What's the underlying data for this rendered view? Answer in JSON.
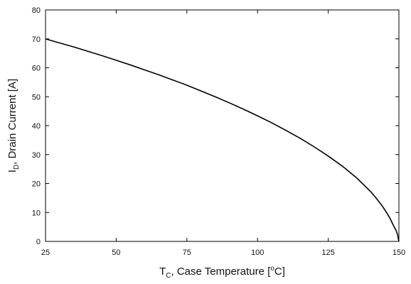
{
  "chart_data": {
    "type": "line",
    "xlabel": {
      "main": "T",
      "sub": "C",
      "rest_before_sup": ", Case Temperature [",
      "sup": "o",
      "rest_after_sup": "C]"
    },
    "ylabel": {
      "main": "I",
      "sub": "D",
      "rest": ", Drain Current [A]"
    },
    "xlim": [
      25,
      150
    ],
    "ylim": [
      0,
      80
    ],
    "xticks": [
      25,
      50,
      75,
      100,
      125,
      150
    ],
    "yticks": [
      0,
      10,
      20,
      30,
      40,
      50,
      60,
      70,
      80
    ],
    "grid": false,
    "series": [
      {
        "color": "#000000",
        "x": [
          25,
          30,
          35,
          40,
          45,
          50,
          55,
          60,
          65,
          70,
          75,
          80,
          85,
          90,
          95,
          100,
          105,
          110,
          115,
          120,
          125,
          130,
          135,
          140,
          142,
          144,
          146,
          147,
          148,
          149,
          149.5,
          150
        ],
        "y": [
          70.0,
          68.6,
          67.2,
          65.7,
          64.2,
          62.6,
          61.0,
          59.3,
          57.6,
          55.8,
          54.0,
          52.0,
          50.0,
          47.9,
          45.7,
          43.4,
          41.0,
          38.4,
          35.7,
          32.7,
          29.5,
          26.0,
          22.0,
          17.2,
          14.9,
          12.4,
          9.4,
          7.7,
          5.6,
          3.8,
          2.4,
          0.0
        ]
      }
    ]
  }
}
